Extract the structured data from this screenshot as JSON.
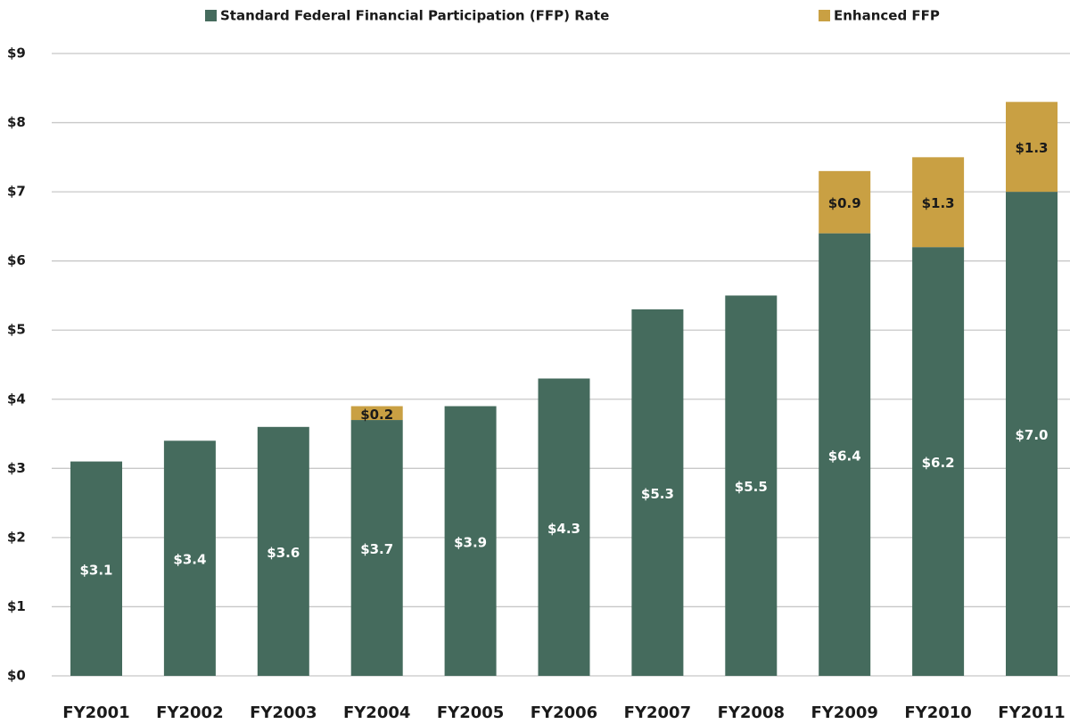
{
  "chart_data": {
    "type": "stacked_bar",
    "categories": [
      "FY2001",
      "FY2002",
      "FY2003",
      "FY2004",
      "FY2005",
      "FY2006",
      "FY2007",
      "FY2008",
      "FY2009",
      "FY2010",
      "FY2011"
    ],
    "series": [
      {
        "name": "Standard Federal Financial Participation (FFP) Rate",
        "color": "#456b5d",
        "values": [
          3.1,
          3.4,
          3.6,
          3.7,
          3.9,
          4.3,
          5.3,
          5.5,
          6.4,
          6.2,
          7.0
        ],
        "value_labels": [
          "$3.1",
          "$3.4",
          "$3.6",
          "$3.7",
          "$3.9",
          "$4.3",
          "$5.3",
          "$5.5",
          "$6.4",
          "$6.2",
          "$7.0"
        ]
      },
      {
        "name": "Enhanced FFP",
        "color": "#c9a043",
        "values": [
          null,
          null,
          null,
          0.2,
          null,
          null,
          null,
          null,
          0.9,
          1.3,
          1.3
        ],
        "value_labels": [
          null,
          null,
          null,
          "$0.2",
          null,
          null,
          null,
          null,
          "$0.9",
          "$1.3",
          "$1.3"
        ]
      }
    ],
    "ylim": [
      0,
      9
    ],
    "yticks": [
      {
        "value": 0,
        "label": "$0"
      },
      {
        "value": 1,
        "label": "$1"
      },
      {
        "value": 2,
        "label": "$2"
      },
      {
        "value": 3,
        "label": "$3"
      },
      {
        "value": 4,
        "label": "$4"
      },
      {
        "value": 5,
        "label": "$5"
      },
      {
        "value": 6,
        "label": "$6"
      },
      {
        "value": 7,
        "label": "$7"
      },
      {
        "value": 8,
        "label": "$8"
      },
      {
        "value": 9,
        "label": "$9"
      }
    ],
    "grid": true
  }
}
